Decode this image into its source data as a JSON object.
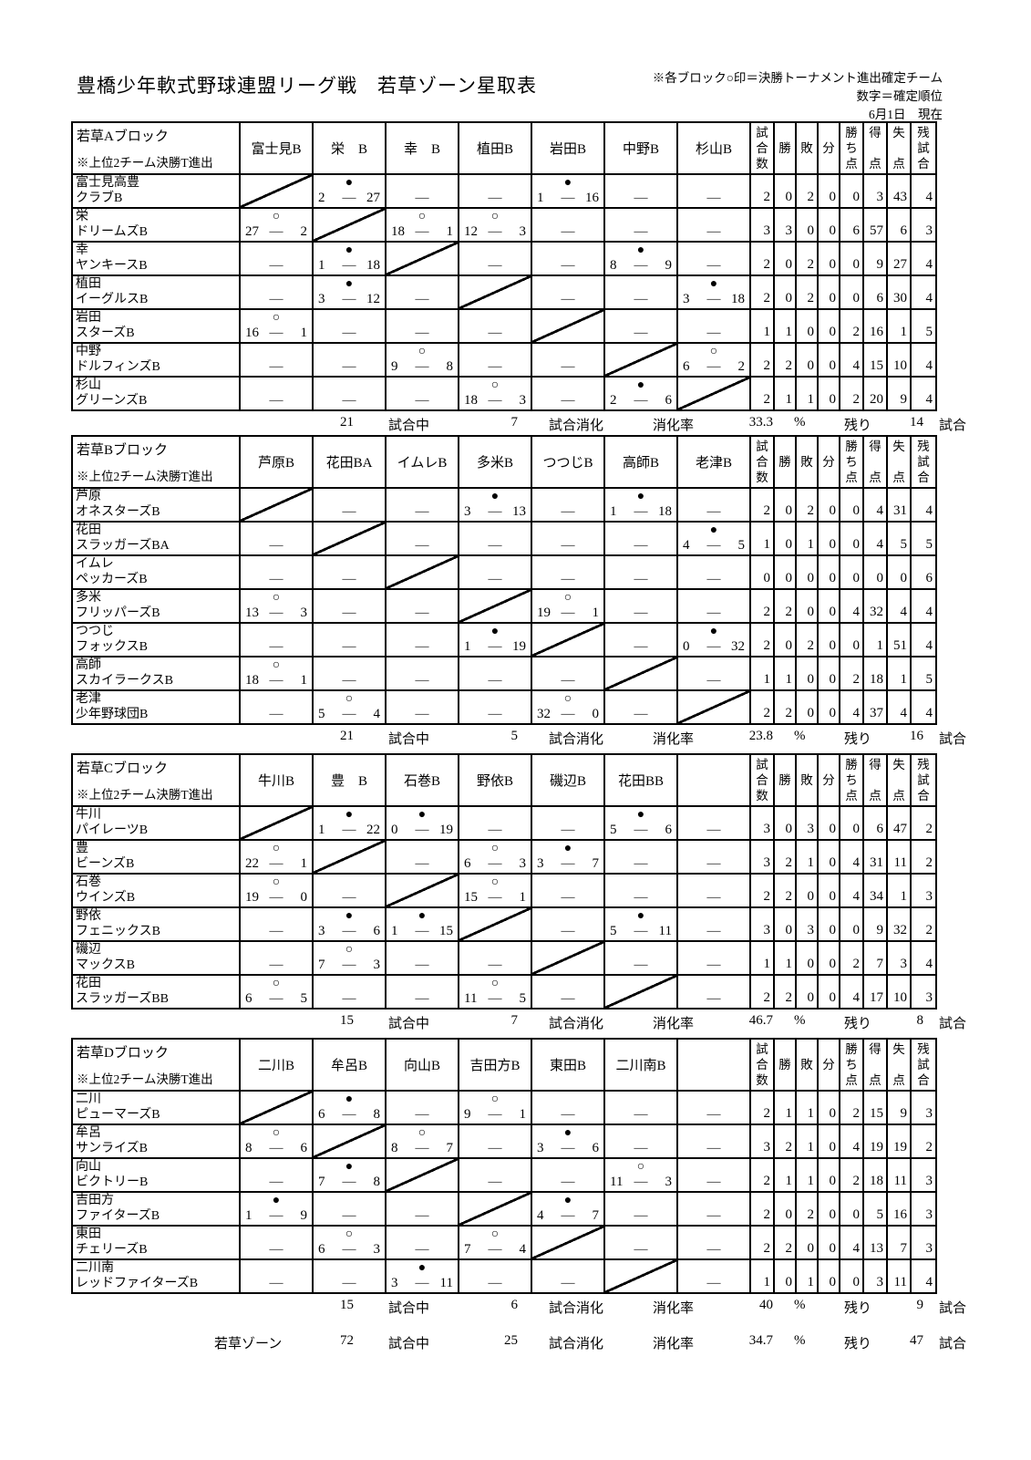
{
  "page": {
    "title": "豊橋少年軟式野球連盟リーグ戦　若草ゾーン星取表",
    "note1": "※各ブロック○印＝決勝トーナメント進出確定チーム",
    "note2": "数字＝確定順位",
    "as_of": "6月1日　現在"
  },
  "marks": {
    "win": "○",
    "lose": "●",
    "none": "—",
    "separator": "—"
  },
  "stat_headers": [
    "試合数",
    "勝",
    "敗",
    "分",
    "勝ち点",
    "得点",
    "失点",
    "残試合"
  ],
  "footer_labels": {
    "games_label": "試合中",
    "played_label": "試合消化",
    "rate_label": "消化率",
    "percent": "%",
    "remaining_label": "残り",
    "games_suffix": "試合"
  },
  "zone_summary": {
    "name": "若草ゾーン",
    "total": "72",
    "played": "25",
    "rate": "34.7",
    "remaining": "47"
  },
  "blocks": [
    {
      "name": "若草Aブロック",
      "note": "※上位2チーム決勝T進出",
      "columns": [
        "富士見B",
        "栄　B",
        "幸　B",
        "植田B",
        "岩田B",
        "中野B",
        "杉山B"
      ],
      "summary": {
        "total": "21",
        "played": "7",
        "rate": "33.3",
        "remaining": "14"
      },
      "teams": [
        {
          "n1": "富士見高豊",
          "n2": "クラブB",
          "cells": [
            [
              "d"
            ],
            [
              "l",
              "2",
              "27"
            ],
            [
              "e"
            ],
            [
              "e"
            ],
            [
              "l",
              "1",
              "16"
            ],
            [
              "e"
            ],
            [
              "e"
            ]
          ],
          "stats": [
            "2",
            "0",
            "2",
            "0",
            "0",
            "3",
            "43",
            "4"
          ]
        },
        {
          "n1": "栄",
          "n2": "ドリームズB",
          "cells": [
            [
              "w",
              "27",
              "2"
            ],
            [
              "d"
            ],
            [
              "w",
              "18",
              "1"
            ],
            [
              "w",
              "12",
              "3"
            ],
            [
              "e"
            ],
            [
              "e"
            ],
            [
              "e"
            ]
          ],
          "stats": [
            "3",
            "3",
            "0",
            "0",
            "6",
            "57",
            "6",
            "3"
          ]
        },
        {
          "n1": "幸",
          "n2": "ヤンキースB",
          "cells": [
            [
              "e"
            ],
            [
              "l",
              "1",
              "18"
            ],
            [
              "d"
            ],
            [
              "e"
            ],
            [
              "e"
            ],
            [
              "l",
              "8",
              "9"
            ],
            [
              "e"
            ]
          ],
          "stats": [
            "2",
            "0",
            "2",
            "0",
            "0",
            "9",
            "27",
            "4"
          ]
        },
        {
          "n1": "植田",
          "n2": "イーグルスB",
          "cells": [
            [
              "e"
            ],
            [
              "l",
              "3",
              "12"
            ],
            [
              "e"
            ],
            [
              "d"
            ],
            [
              "e"
            ],
            [
              "e"
            ],
            [
              "l",
              "3",
              "18"
            ]
          ],
          "stats": [
            "2",
            "0",
            "2",
            "0",
            "0",
            "6",
            "30",
            "4"
          ]
        },
        {
          "n1": "岩田",
          "n2": "スターズB",
          "cells": [
            [
              "w",
              "16",
              "1"
            ],
            [
              "e"
            ],
            [
              "e"
            ],
            [
              "e"
            ],
            [
              "d"
            ],
            [
              "e"
            ],
            [
              "e"
            ]
          ],
          "stats": [
            "1",
            "1",
            "0",
            "0",
            "2",
            "16",
            "1",
            "5"
          ]
        },
        {
          "n1": "中野",
          "n2": "ドルフィンズB",
          "cells": [
            [
              "e"
            ],
            [
              "e"
            ],
            [
              "w",
              "9",
              "8"
            ],
            [
              "e"
            ],
            [
              "e"
            ],
            [
              "d"
            ],
            [
              "w",
              "6",
              "2"
            ]
          ],
          "stats": [
            "2",
            "2",
            "0",
            "0",
            "4",
            "15",
            "10",
            "4"
          ]
        },
        {
          "n1": "杉山",
          "n2": "グリーンズB",
          "cells": [
            [
              "e"
            ],
            [
              "e"
            ],
            [
              "e"
            ],
            [
              "w",
              "18",
              "3"
            ],
            [
              "e"
            ],
            [
              "l",
              "2",
              "6"
            ],
            [
              "d"
            ]
          ],
          "stats": [
            "2",
            "1",
            "1",
            "0",
            "2",
            "20",
            "9",
            "4"
          ]
        }
      ]
    },
    {
      "name": "若草Bブロック",
      "note": "※上位2チーム決勝T進出",
      "columns": [
        "芦原B",
        "花田BA",
        "イムレB",
        "多米B",
        "つつじB",
        "高師B",
        "老津B"
      ],
      "summary": {
        "total": "21",
        "played": "5",
        "rate": "23.8",
        "remaining": "16"
      },
      "teams": [
        {
          "n1": "芦原",
          "n2": "オネスターズB",
          "cells": [
            [
              "d"
            ],
            [
              "e"
            ],
            [
              "e"
            ],
            [
              "l",
              "3",
              "13"
            ],
            [
              "e"
            ],
            [
              "l",
              "1",
              "18"
            ],
            [
              "e"
            ]
          ],
          "stats": [
            "2",
            "0",
            "2",
            "0",
            "0",
            "4",
            "31",
            "4"
          ]
        },
        {
          "n1": "花田",
          "n2": "スラッガーズBA",
          "cells": [
            [
              "e"
            ],
            [
              "d"
            ],
            [
              "e"
            ],
            [
              "e"
            ],
            [
              "e"
            ],
            [
              "e"
            ],
            [
              "l",
              "4",
              "5"
            ]
          ],
          "stats": [
            "1",
            "0",
            "1",
            "0",
            "0",
            "4",
            "5",
            "5"
          ]
        },
        {
          "n1": "イムレ",
          "n2": "ペッカーズB",
          "cells": [
            [
              "e"
            ],
            [
              "e"
            ],
            [
              "d"
            ],
            [
              "e"
            ],
            [
              "e"
            ],
            [
              "e"
            ],
            [
              "e"
            ]
          ],
          "stats": [
            "0",
            "0",
            "0",
            "0",
            "0",
            "0",
            "0",
            "6"
          ]
        },
        {
          "n1": "多米",
          "n2": "フリッパーズB",
          "cells": [
            [
              "w",
              "13",
              "3"
            ],
            [
              "e"
            ],
            [
              "e"
            ],
            [
              "d"
            ],
            [
              "w",
              "19",
              "1"
            ],
            [
              "e"
            ],
            [
              "e"
            ]
          ],
          "stats": [
            "2",
            "2",
            "0",
            "0",
            "4",
            "32",
            "4",
            "4"
          ]
        },
        {
          "n1": "つつじ",
          "n2": "フォックスB",
          "cells": [
            [
              "e"
            ],
            [
              "e"
            ],
            [
              "e"
            ],
            [
              "l",
              "1",
              "19"
            ],
            [
              "d"
            ],
            [
              "e"
            ],
            [
              "l",
              "0",
              "32"
            ]
          ],
          "stats": [
            "2",
            "0",
            "2",
            "0",
            "0",
            "1",
            "51",
            "4"
          ]
        },
        {
          "n1": "高師",
          "n2": "スカイラークスB",
          "cells": [
            [
              "w",
              "18",
              "1"
            ],
            [
              "e"
            ],
            [
              "e"
            ],
            [
              "e"
            ],
            [
              "e"
            ],
            [
              "d"
            ],
            [
              "e"
            ]
          ],
          "stats": [
            "1",
            "1",
            "0",
            "0",
            "2",
            "18",
            "1",
            "5"
          ]
        },
        {
          "n1": "老津",
          "n2": "少年野球団B",
          "cells": [
            [
              "e"
            ],
            [
              "w",
              "5",
              "4"
            ],
            [
              "e"
            ],
            [
              "e"
            ],
            [
              "w",
              "32",
              "0"
            ],
            [
              "e"
            ],
            [
              "d"
            ]
          ],
          "stats": [
            "2",
            "2",
            "0",
            "0",
            "4",
            "37",
            "4",
            "4"
          ]
        }
      ]
    },
    {
      "name": "若草Cブロック",
      "note": "※上位2チーム決勝T進出",
      "columns": [
        "牛川B",
        "豊　B",
        "石巻B",
        "野依B",
        "磯辺B",
        "花田BB",
        ""
      ],
      "summary": {
        "total": "15",
        "played": "7",
        "rate": "46.7",
        "remaining": "8"
      },
      "teams": [
        {
          "n1": "牛川",
          "n2": "パイレーツB",
          "cells": [
            [
              "d"
            ],
            [
              "l",
              "1",
              "22"
            ],
            [
              "l",
              "0",
              "19"
            ],
            [
              "e"
            ],
            [
              "e"
            ],
            [
              "l",
              "5",
              "6"
            ],
            [
              "e"
            ]
          ],
          "stats": [
            "3",
            "0",
            "3",
            "0",
            "0",
            "6",
            "47",
            "2"
          ]
        },
        {
          "n1": "豊",
          "n2": "ビーンズB",
          "cells": [
            [
              "w",
              "22",
              "1"
            ],
            [
              "d"
            ],
            [
              "e"
            ],
            [
              "w",
              "6",
              "3"
            ],
            [
              "l",
              "3",
              "7"
            ],
            [
              "e"
            ],
            [
              "e"
            ]
          ],
          "stats": [
            "3",
            "2",
            "1",
            "0",
            "4",
            "31",
            "11",
            "2"
          ]
        },
        {
          "n1": "石巻",
          "n2": "ウインズB",
          "cells": [
            [
              "w",
              "19",
              "0"
            ],
            [
              "e"
            ],
            [
              "d"
            ],
            [
              "w",
              "15",
              "1"
            ],
            [
              "e"
            ],
            [
              "e"
            ],
            [
              "e"
            ]
          ],
          "stats": [
            "2",
            "2",
            "0",
            "0",
            "4",
            "34",
            "1",
            "3"
          ]
        },
        {
          "n1": "野依",
          "n2": "フェニックスB",
          "cells": [
            [
              "e"
            ],
            [
              "l",
              "3",
              "6"
            ],
            [
              "l",
              "1",
              "15"
            ],
            [
              "d"
            ],
            [
              "e"
            ],
            [
              "l",
              "5",
              "11"
            ],
            [
              "e"
            ]
          ],
          "stats": [
            "3",
            "0",
            "3",
            "0",
            "0",
            "9",
            "32",
            "2"
          ]
        },
        {
          "n1": "磯辺",
          "n2": "マックスB",
          "cells": [
            [
              "e"
            ],
            [
              "w",
              "7",
              "3"
            ],
            [
              "e"
            ],
            [
              "e"
            ],
            [
              "d"
            ],
            [
              "e"
            ],
            [
              "e"
            ]
          ],
          "stats": [
            "1",
            "1",
            "0",
            "0",
            "2",
            "7",
            "3",
            "4"
          ]
        },
        {
          "n1": "花田",
          "n2": "スラッガーズBB",
          "cells": [
            [
              "w",
              "6",
              "5"
            ],
            [
              "e"
            ],
            [
              "e"
            ],
            [
              "w",
              "11",
              "5"
            ],
            [
              "e"
            ],
            [
              "d"
            ],
            [
              "e"
            ]
          ],
          "stats": [
            "2",
            "2",
            "0",
            "0",
            "4",
            "17",
            "10",
            "3"
          ]
        }
      ]
    },
    {
      "name": "若草Dブロック",
      "note": "※上位2チーム決勝T進出",
      "columns": [
        "二川B",
        "牟呂B",
        "向山B",
        "吉田方B",
        "東田B",
        "二川南B",
        ""
      ],
      "summary": {
        "total": "15",
        "played": "6",
        "rate": "40",
        "remaining": "9"
      },
      "teams": [
        {
          "n1": "二川",
          "n2": "ピューマーズB",
          "cells": [
            [
              "d"
            ],
            [
              "l",
              "6",
              "8"
            ],
            [
              "e"
            ],
            [
              "w",
              "9",
              "1"
            ],
            [
              "e"
            ],
            [
              "e"
            ],
            [
              "e"
            ]
          ],
          "stats": [
            "2",
            "1",
            "1",
            "0",
            "2",
            "15",
            "9",
            "3"
          ]
        },
        {
          "n1": "牟呂",
          "n2": "サンライズB",
          "cells": [
            [
              "w",
              "8",
              "6"
            ],
            [
              "d"
            ],
            [
              "w",
              "8",
              "7"
            ],
            [
              "e"
            ],
            [
              "l",
              "3",
              "6"
            ],
            [
              "e"
            ],
            [
              "e"
            ]
          ],
          "stats": [
            "3",
            "2",
            "1",
            "0",
            "4",
            "19",
            "19",
            "2"
          ]
        },
        {
          "n1": "向山",
          "n2": "ビクトリーB",
          "cells": [
            [
              "e"
            ],
            [
              "l",
              "7",
              "8"
            ],
            [
              "d"
            ],
            [
              "e"
            ],
            [
              "e"
            ],
            [
              "w",
              "11",
              "3"
            ],
            [
              "e"
            ]
          ],
          "stats": [
            "2",
            "1",
            "1",
            "0",
            "2",
            "18",
            "11",
            "3"
          ]
        },
        {
          "n1": "吉田方",
          "n2": "ファイターズB",
          "cells": [
            [
              "l",
              "1",
              "9"
            ],
            [
              "e"
            ],
            [
              "e"
            ],
            [
              "d"
            ],
            [
              "l",
              "4",
              "7"
            ],
            [
              "e"
            ],
            [
              "e"
            ]
          ],
          "stats": [
            "2",
            "0",
            "2",
            "0",
            "0",
            "5",
            "16",
            "3"
          ]
        },
        {
          "n1": "東田",
          "n2": "チェリーズB",
          "cells": [
            [
              "e"
            ],
            [
              "w",
              "6",
              "3"
            ],
            [
              "e"
            ],
            [
              "w",
              "7",
              "4"
            ],
            [
              "d"
            ],
            [
              "e"
            ],
            [
              "e"
            ]
          ],
          "stats": [
            "2",
            "2",
            "0",
            "0",
            "4",
            "13",
            "7",
            "3"
          ]
        },
        {
          "n1": "二川南",
          "n2": "レッドファイターズB",
          "cells": [
            [
              "e"
            ],
            [
              "e"
            ],
            [
              "l",
              "3",
              "11"
            ],
            [
              "e"
            ],
            [
              "e"
            ],
            [
              "d"
            ],
            [
              "e"
            ]
          ],
          "stats": [
            "1",
            "0",
            "1",
            "0",
            "0",
            "3",
            "11",
            "4"
          ]
        }
      ]
    }
  ]
}
